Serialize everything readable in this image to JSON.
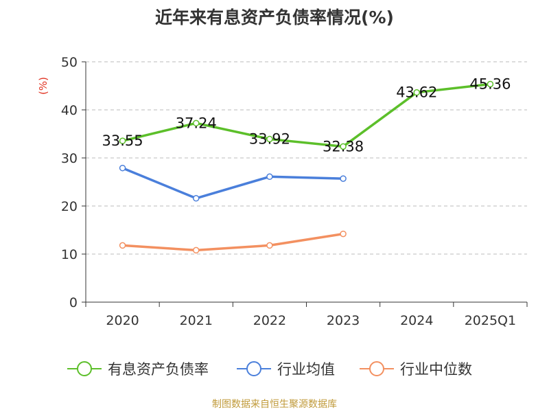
{
  "chart_data": {
    "type": "line",
    "title": "近年来有息资产负债率情况(%)",
    "ylabel": "(%)",
    "xlabel": "",
    "ylim": [
      0,
      50
    ],
    "yticks": [
      0,
      10,
      20,
      30,
      40,
      50
    ],
    "categories": [
      "2020",
      "2021",
      "2022",
      "2023",
      "2024",
      "2025Q1"
    ],
    "series": [
      {
        "name": "有息资产负债率",
        "color": "#5cbf2a",
        "values": [
          33.55,
          37.24,
          33.92,
          32.38,
          43.62,
          45.36
        ],
        "labels": [
          "33.55",
          "37.24",
          "33.92",
          "32.38",
          "43.62",
          "45.36"
        ]
      },
      {
        "name": "行业均值",
        "color": "#4a7fdb",
        "values": [
          27.9,
          21.6,
          26.1,
          25.7,
          null,
          null
        ]
      },
      {
        "name": "行业中位数",
        "color": "#f39060",
        "values": [
          11.8,
          10.8,
          11.8,
          14.2,
          null,
          null
        ]
      }
    ],
    "legend_position": "bottom",
    "grid": true
  },
  "source": "制图数据来自恒生聚源数据库"
}
